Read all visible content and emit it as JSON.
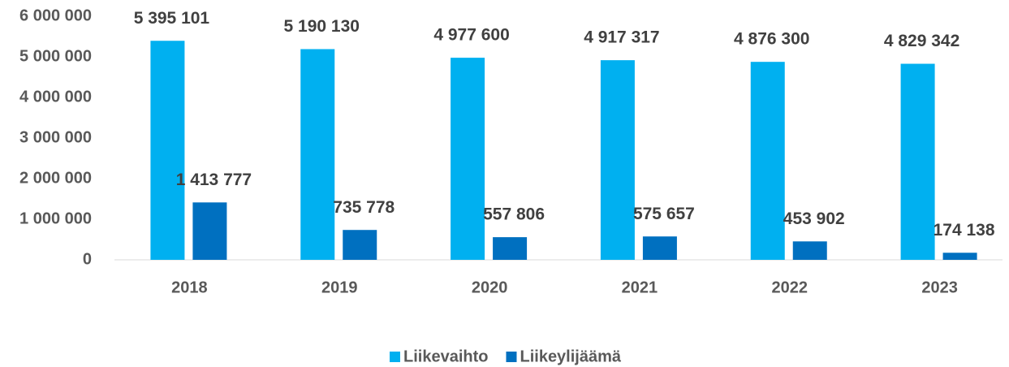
{
  "chart_data": {
    "type": "bar",
    "categories": [
      "2018",
      "2019",
      "2020",
      "2021",
      "2022",
      "2023"
    ],
    "series": [
      {
        "name": "Liikevaihto",
        "color": "#00b0f0",
        "values": [
          5395101,
          5190130,
          4977600,
          4917317,
          4876300,
          4829342
        ],
        "value_labels": [
          "5 395 101",
          "5 190 130",
          "4 977 600",
          "4 917 317",
          "4 876 300",
          "4 829 342"
        ]
      },
      {
        "name": "Liikeylijäämä",
        "color": "#0070c0",
        "values": [
          1413777,
          735778,
          557806,
          575657,
          453902,
          174138
        ],
        "value_labels": [
          "1 413 777",
          "735 778",
          "557 806",
          "575 657",
          "453 902",
          "174 138"
        ]
      }
    ],
    "ylim": [
      0,
      6000000
    ],
    "yticks": [
      0,
      {
        "value": 1000000,
        "label": "1 000 000"
      },
      {
        "value": 2000000,
        "label": "2 000 000"
      },
      {
        "value": 3000000,
        "label": "3 000 000"
      },
      {
        "value": 4000000,
        "label": "4 000 000"
      },
      {
        "value": 5000000,
        "label": "5 000 000"
      },
      {
        "value": 6000000,
        "label": "6 000 000"
      }
    ],
    "grid": false,
    "legend": "bottom"
  }
}
